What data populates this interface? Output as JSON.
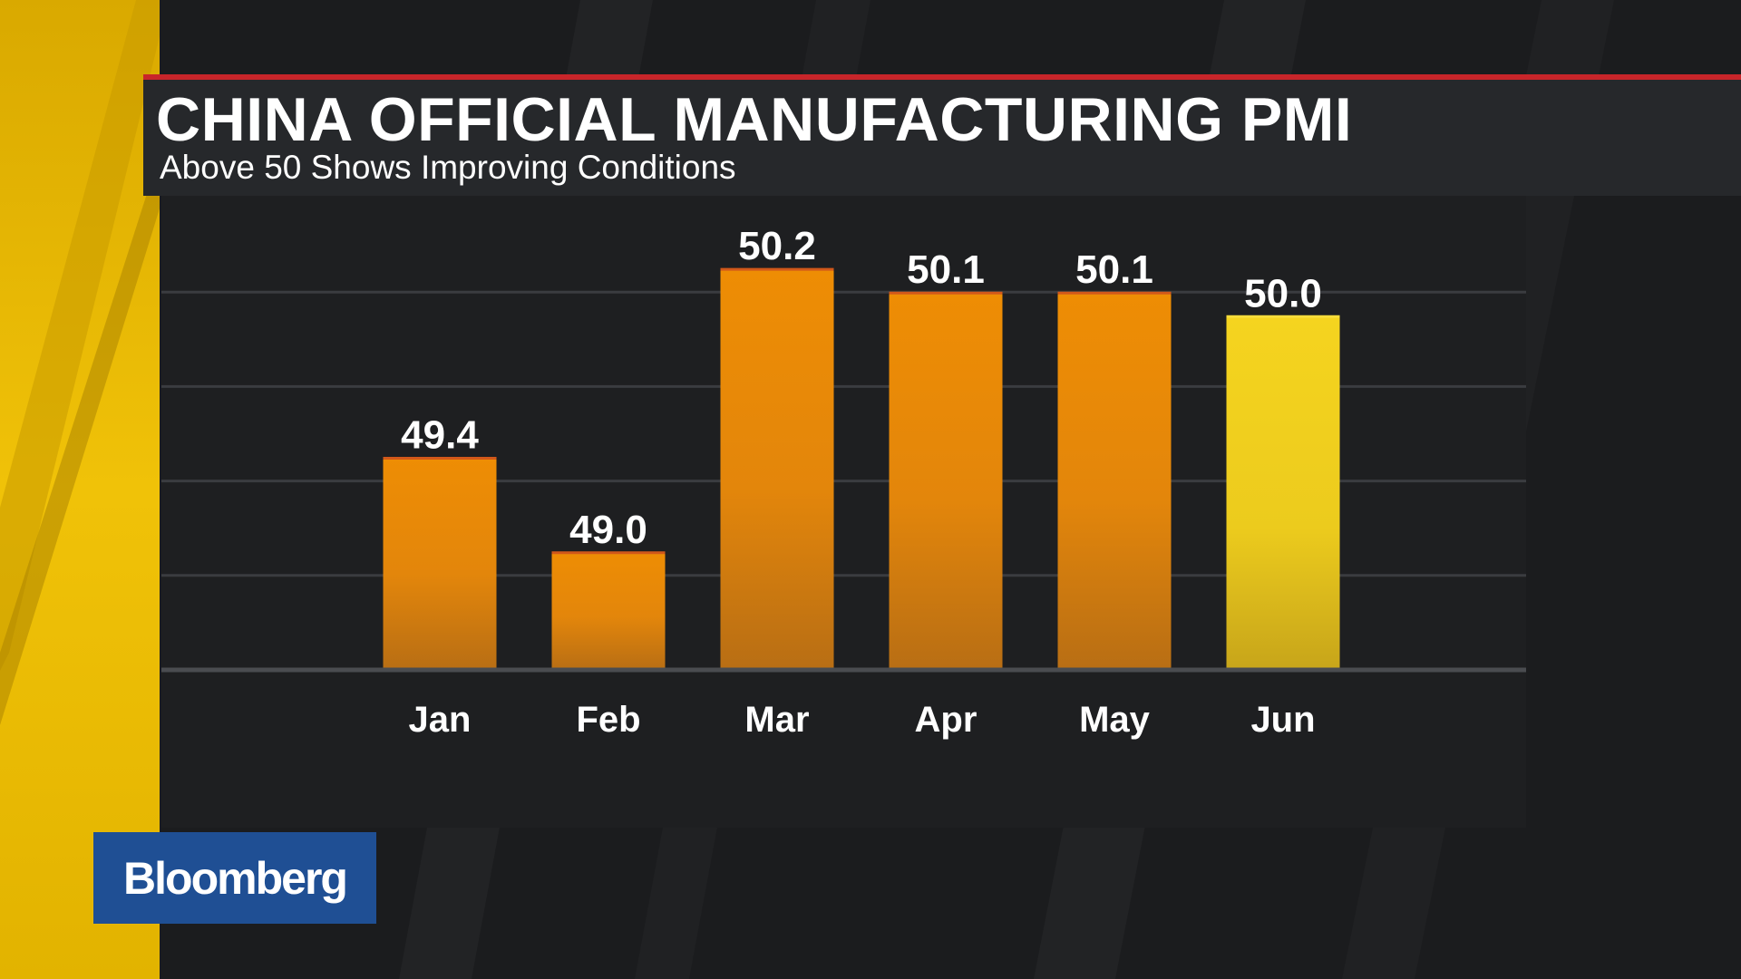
{
  "brand": {
    "logo_text": "Bloomberg",
    "logo_bg": "#1f4f94"
  },
  "colors": {
    "accent_red": "#c8252a",
    "bar_orange": "#e88a08",
    "bar_yellow": "#f2d21e",
    "left_stripe_yellow": "#f0c208"
  },
  "chart_data": {
    "type": "bar",
    "title": "CHINA OFFICIAL MANUFACTURING PMI",
    "subtitle": "Above 50 Shows Improving Conditions",
    "xlabel": "",
    "ylabel": "",
    "categories": [
      "Jan",
      "Feb",
      "Mar",
      "Apr",
      "May",
      "Jun"
    ],
    "values": [
      49.4,
      49.0,
      50.2,
      50.1,
      50.1,
      50.0
    ],
    "value_labels": [
      "49.4",
      "49.0",
      "50.2",
      "50.1",
      "50.1",
      "50.0"
    ],
    "highlight_index": 5,
    "ylim": [
      48.5,
      50.5
    ],
    "grid": true,
    "legend": "none"
  }
}
